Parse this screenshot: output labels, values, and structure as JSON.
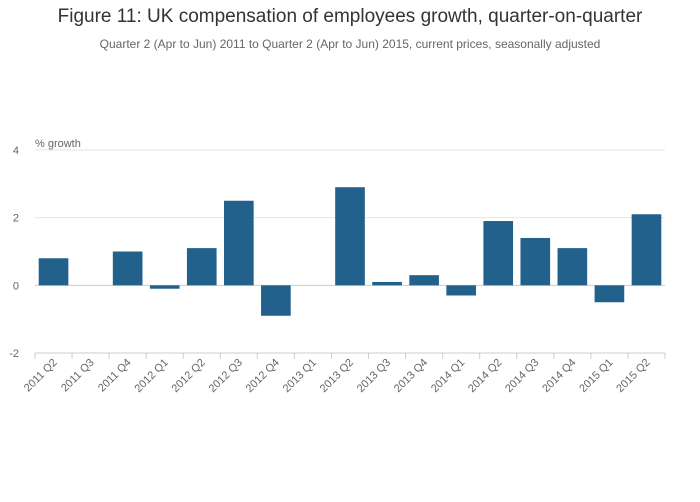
{
  "chart_data": {
    "type": "bar",
    "title": "Figure 11: UK compensation of employees growth, quarter-on-quarter",
    "subtitle": "Quarter 2 (Apr to Jun) 2011 to Quarter 2 (Apr to Jun) 2015, current prices, seasonally adjusted",
    "xlabel": "",
    "ylabel": "% growth",
    "ylim": [
      -2,
      4
    ],
    "yticks": [
      4,
      2,
      0,
      -2
    ],
    "grid": true,
    "bar_color": "#21618c",
    "categories": [
      "2011 Q2",
      "2011 Q3",
      "2011 Q4",
      "2012 Q1",
      "2012 Q2",
      "2012 Q3",
      "2012 Q4",
      "2013 Q1",
      "2013 Q2",
      "2013 Q3",
      "2013 Q4",
      "2014 Q1",
      "2014 Q2",
      "2014 Q3",
      "2014 Q4",
      "2015 Q1",
      "2015 Q2"
    ],
    "values": [
      0.8,
      0.0,
      1.0,
      -0.1,
      1.1,
      2.5,
      -0.9,
      0.0,
      2.9,
      0.1,
      0.3,
      -0.3,
      1.9,
      1.4,
      1.1,
      -0.5,
      2.1
    ]
  }
}
